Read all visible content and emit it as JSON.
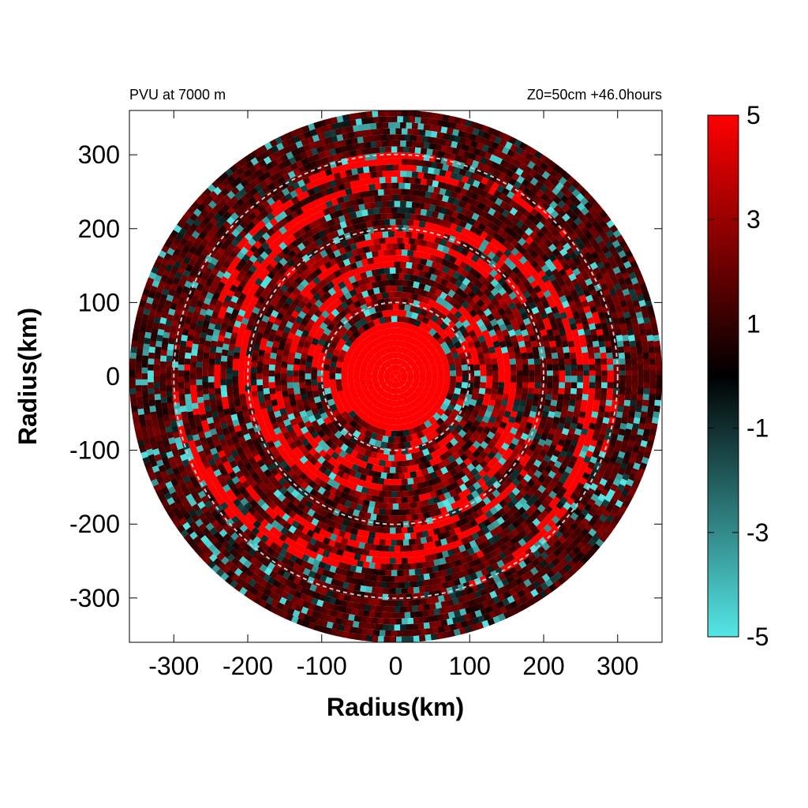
{
  "chart_data": {
    "type": "heatmap",
    "title_left": "PVU at  7000 m",
    "title_right": "Z0=50cm  +46.0hours",
    "xlabel": "Radius(km)",
    "ylabel": "Radius(km)",
    "xlim": [
      -360,
      360
    ],
    "ylim": [
      -360,
      360
    ],
    "x_ticks": [
      -300,
      -200,
      -100,
      0,
      100,
      200,
      300
    ],
    "y_ticks": [
      300,
      200,
      100,
      0,
      -100,
      -200,
      -300
    ],
    "x_tick_labels": [
      "-300",
      "-200",
      "-100",
      "0",
      "100",
      "200",
      "300"
    ],
    "y_tick_labels": [
      "300",
      "200",
      "100",
      "0",
      "-100",
      "-200",
      "-300"
    ],
    "domain_radius_km": 360,
    "range_rings_km": [
      100,
      200,
      300
    ],
    "core": {
      "radius_km": 75,
      "value": 5
    },
    "grid": false,
    "colorbar": {
      "min": -5,
      "max": 5,
      "ticks": [
        5,
        3,
        1,
        -1,
        -3,
        -5
      ],
      "tick_labels": [
        "5",
        "3",
        "1",
        "-1",
        "-3",
        "-5"
      ],
      "colors": [
        {
          "value": 5,
          "color": "#ff0000"
        },
        {
          "value": 0,
          "color": "#000000"
        },
        {
          "value": -5,
          "color": "#55e6e6"
        }
      ]
    }
  }
}
